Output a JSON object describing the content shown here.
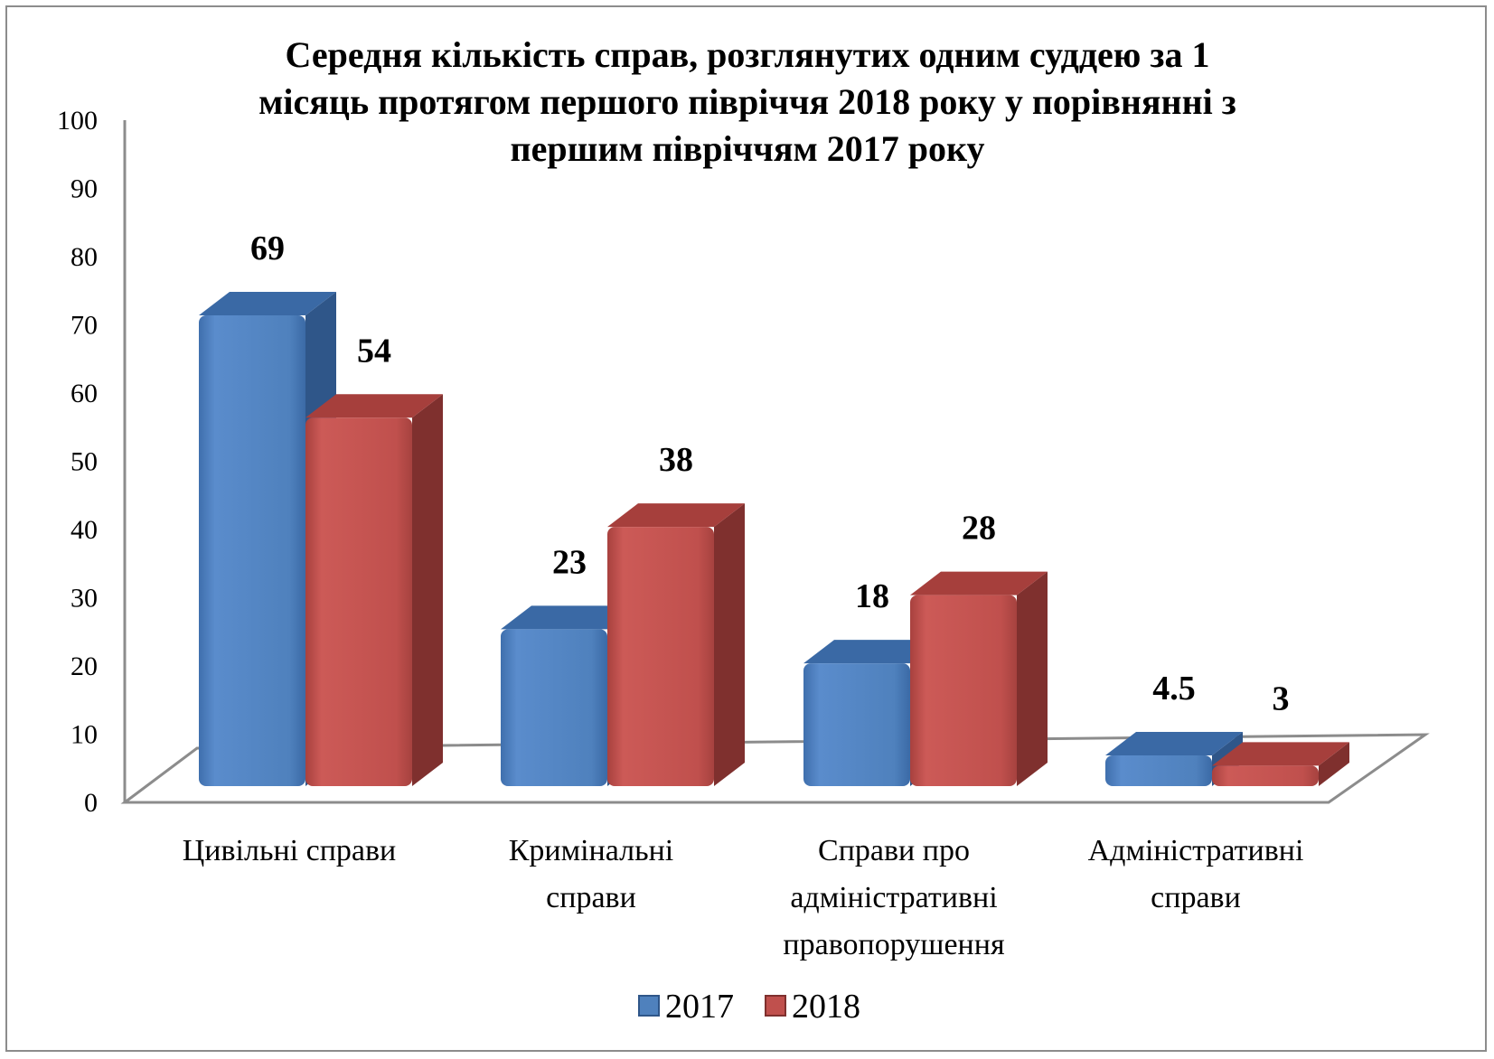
{
  "chart_data": {
    "type": "bar",
    "title_lines": [
      "Середня кількість справ, розглянутих одним  суддею за 1",
      "місяць протягом першого півріччя 2018 року у порівнянні з",
      "першим півріччям 2017 року"
    ],
    "categories": [
      [
        "Цивільні справи"
      ],
      [
        "Кримінальні",
        "справи"
      ],
      [
        "Справи про",
        "адміністративні",
        "правопорушення"
      ],
      [
        "Адміністративні",
        "справи"
      ]
    ],
    "series": [
      {
        "name": "2017",
        "values": [
          69,
          23,
          18,
          4.5
        ],
        "labels": [
          "69",
          "23",
          "18",
          "4.5"
        ]
      },
      {
        "name": "2018",
        "values": [
          54,
          38,
          28,
          3
        ],
        "labels": [
          "54",
          "38",
          "28",
          "3"
        ]
      }
    ],
    "ylim": [
      0,
      100
    ],
    "yticks": [
      "0",
      "10",
      "20",
      "30",
      "40",
      "50",
      "60",
      "70",
      "80",
      "90",
      "100"
    ],
    "legend_position": "bottom",
    "grid": false,
    "colors": {
      "2017": {
        "front": "#4f81bd",
        "top": "#3a69a5",
        "side": "#2f5689"
      },
      "2018": {
        "front": "#c0504d",
        "top": "#a63f3c",
        "side": "#7f302e"
      }
    }
  }
}
